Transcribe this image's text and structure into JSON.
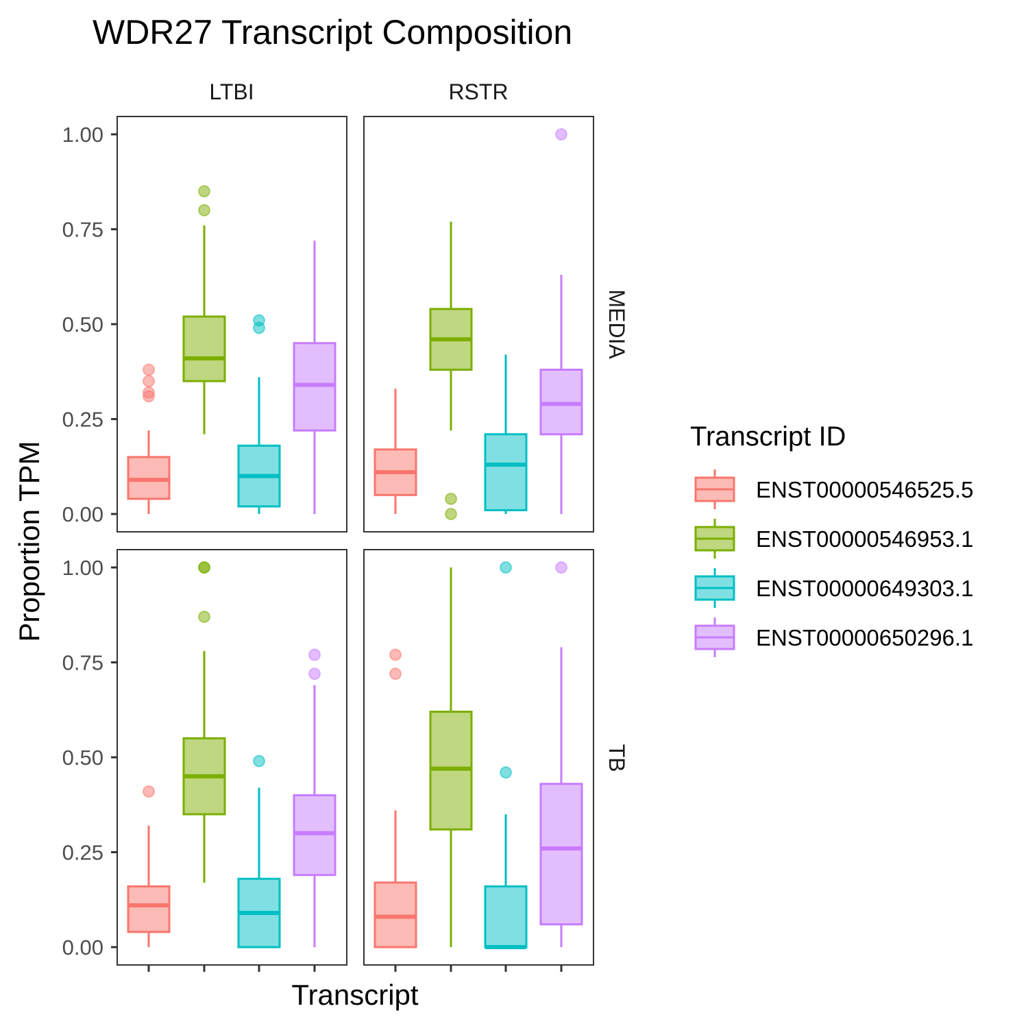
{
  "chart_data": {
    "type": "box",
    "title": "WDR27 Transcript Composition",
    "xlabel": "Transcript",
    "ylabel": "Proportion TPM",
    "ylim": [
      0,
      1
    ],
    "yticks": [
      "0.00",
      "0.25",
      "0.50",
      "0.75",
      "1.00"
    ],
    "grid": false,
    "legend": {
      "title": "Transcript ID",
      "position": "right",
      "entries": [
        "ENST00000546525.5",
        "ENST00000546953.1",
        "ENST00000649303.1",
        "ENST00000650296.1"
      ]
    },
    "colors": {
      "ENST00000546525.5": "#F8766D",
      "ENST00000546953.1": "#7CAE00",
      "ENST00000649303.1": "#00BFC4",
      "ENST00000650296.1": "#C77CFF"
    },
    "facet_cols": [
      "LTBI",
      "RSTR"
    ],
    "facet_rows": [
      "MEDIA",
      "TB"
    ],
    "panels": [
      {
        "col": "LTBI",
        "row": "MEDIA",
        "boxes": [
          {
            "transcript": "ENST00000546525.5",
            "q1": 0.04,
            "median": 0.09,
            "q3": 0.15,
            "whisker_low": 0.0,
            "whisker_high": 0.22,
            "outliers": [
              0.38,
              0.35,
              0.32,
              0.31
            ]
          },
          {
            "transcript": "ENST00000546953.1",
            "q1": 0.35,
            "median": 0.41,
            "q3": 0.52,
            "whisker_low": 0.21,
            "whisker_high": 0.76,
            "outliers": [
              0.85,
              0.8
            ]
          },
          {
            "transcript": "ENST00000649303.1",
            "q1": 0.02,
            "median": 0.1,
            "q3": 0.18,
            "whisker_low": 0.0,
            "whisker_high": 0.36,
            "outliers": [
              0.51,
              0.49
            ]
          },
          {
            "transcript": "ENST00000650296.1",
            "q1": 0.22,
            "median": 0.34,
            "q3": 0.45,
            "whisker_low": 0.0,
            "whisker_high": 0.72,
            "outliers": []
          }
        ]
      },
      {
        "col": "RSTR",
        "row": "MEDIA",
        "boxes": [
          {
            "transcript": "ENST00000546525.5",
            "q1": 0.05,
            "median": 0.11,
            "q3": 0.17,
            "whisker_low": 0.0,
            "whisker_high": 0.33,
            "outliers": []
          },
          {
            "transcript": "ENST00000546953.1",
            "q1": 0.38,
            "median": 0.46,
            "q3": 0.54,
            "whisker_low": 0.22,
            "whisker_high": 0.77,
            "outliers": [
              0.04,
              0.0
            ]
          },
          {
            "transcript": "ENST00000649303.1",
            "q1": 0.01,
            "median": 0.13,
            "q3": 0.21,
            "whisker_low": 0.0,
            "whisker_high": 0.42,
            "outliers": []
          },
          {
            "transcript": "ENST00000650296.1",
            "q1": 0.21,
            "median": 0.29,
            "q3": 0.38,
            "whisker_low": 0.0,
            "whisker_high": 0.63,
            "outliers": [
              1.0
            ]
          }
        ]
      },
      {
        "col": "LTBI",
        "row": "TB",
        "boxes": [
          {
            "transcript": "ENST00000546525.5",
            "q1": 0.04,
            "median": 0.11,
            "q3": 0.16,
            "whisker_low": 0.0,
            "whisker_high": 0.32,
            "outliers": [
              0.41
            ]
          },
          {
            "transcript": "ENST00000546953.1",
            "q1": 0.35,
            "median": 0.45,
            "q3": 0.55,
            "whisker_low": 0.17,
            "whisker_high": 0.78,
            "outliers": [
              1.0,
              1.0,
              0.87
            ]
          },
          {
            "transcript": "ENST00000649303.1",
            "q1": 0.0,
            "median": 0.09,
            "q3": 0.18,
            "whisker_low": 0.0,
            "whisker_high": 0.42,
            "outliers": [
              0.49
            ]
          },
          {
            "transcript": "ENST00000650296.1",
            "q1": 0.19,
            "median": 0.3,
            "q3": 0.4,
            "whisker_low": 0.0,
            "whisker_high": 0.69,
            "outliers": [
              0.77,
              0.72
            ]
          }
        ]
      },
      {
        "col": "RSTR",
        "row": "TB",
        "boxes": [
          {
            "transcript": "ENST00000546525.5",
            "q1": 0.0,
            "median": 0.08,
            "q3": 0.17,
            "whisker_low": 0.0,
            "whisker_high": 0.36,
            "outliers": [
              0.77,
              0.72
            ]
          },
          {
            "transcript": "ENST00000546953.1",
            "q1": 0.31,
            "median": 0.47,
            "q3": 0.62,
            "whisker_low": 0.0,
            "whisker_high": 1.0,
            "outliers": []
          },
          {
            "transcript": "ENST00000649303.1",
            "q1": 0.0,
            "median": 0.0,
            "q3": 0.16,
            "whisker_low": 0.0,
            "whisker_high": 0.35,
            "outliers": [
              1.0,
              0.46
            ]
          },
          {
            "transcript": "ENST00000650296.1",
            "q1": 0.06,
            "median": 0.26,
            "q3": 0.43,
            "whisker_low": 0.0,
            "whisker_high": 0.79,
            "outliers": [
              1.0
            ]
          }
        ]
      }
    ]
  }
}
